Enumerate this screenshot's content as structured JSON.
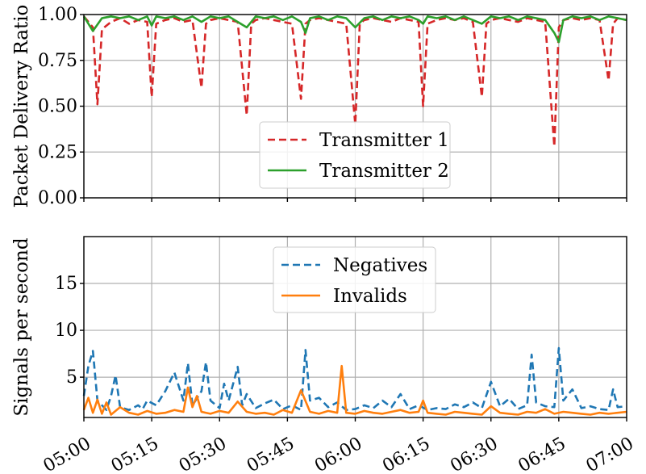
{
  "chart_data": [
    {
      "type": "line",
      "ylabel": "Packet Delivery Ratio",
      "xlabel": "",
      "ylim": [
        0.0,
        1.0
      ],
      "yticks": [
        "0.00",
        "0.25",
        "0.50",
        "0.75",
        "1.00"
      ],
      "xlim": [
        "05:00",
        "07:00"
      ],
      "xticks": [
        "05:00",
        "05:15",
        "05:30",
        "05:45",
        "06:00",
        "06:15",
        "06:30",
        "06:45",
        "07:00"
      ],
      "x_tick_labels_shown": false,
      "grid": true,
      "legend_position": "lower-center",
      "series": [
        {
          "name": "Transmitter 1",
          "color": "#d62728",
          "dash": "dashed",
          "x": [
            "05:00",
            "05:02",
            "05:03",
            "05:04",
            "05:06",
            "05:08",
            "05:10",
            "05:12",
            "05:14",
            "05:15",
            "05:16",
            "05:18",
            "05:20",
            "05:22",
            "05:24",
            "05:26",
            "05:27",
            "05:28",
            "05:30",
            "05:32",
            "05:34",
            "05:36",
            "05:37",
            "05:38",
            "05:40",
            "05:42",
            "05:44",
            "05:46",
            "05:48",
            "05:49",
            "05:50",
            "05:52",
            "05:54",
            "05:56",
            "05:58",
            "06:00",
            "06:01",
            "06:02",
            "06:04",
            "06:06",
            "06:08",
            "06:10",
            "06:12",
            "06:14",
            "06:15",
            "06:16",
            "06:18",
            "06:20",
            "06:22",
            "06:24",
            "06:26",
            "06:28",
            "06:29",
            "06:30",
            "06:32",
            "06:34",
            "06:36",
            "06:38",
            "06:40",
            "06:42",
            "06:44",
            "06:45",
            "06:46",
            "06:48",
            "06:50",
            "06:52",
            "06:54",
            "06:56",
            "06:57",
            "06:58",
            "07:00"
          ],
          "values": [
            0.99,
            0.93,
            0.51,
            0.92,
            0.96,
            0.98,
            0.95,
            0.97,
            0.96,
            0.55,
            0.95,
            0.97,
            0.98,
            0.96,
            0.97,
            0.6,
            0.95,
            0.97,
            0.98,
            0.97,
            0.96,
            0.45,
            0.95,
            0.97,
            0.98,
            0.97,
            0.96,
            0.95,
            0.54,
            0.95,
            0.97,
            0.98,
            0.97,
            0.96,
            0.95,
            0.4,
            0.95,
            0.97,
            0.98,
            0.97,
            0.96,
            0.98,
            0.97,
            0.96,
            0.5,
            0.95,
            0.97,
            0.98,
            0.97,
            0.98,
            0.96,
            0.55,
            0.95,
            0.97,
            0.98,
            0.97,
            0.96,
            0.98,
            0.97,
            0.96,
            0.28,
            0.93,
            0.97,
            0.98,
            0.97,
            0.98,
            0.97,
            0.64,
            0.95,
            0.98,
            0.97
          ]
        },
        {
          "name": "Transmitter 2",
          "color": "#2ca02c",
          "dash": "solid",
          "x": [
            "05:00",
            "05:02",
            "05:04",
            "05:06",
            "05:08",
            "05:10",
            "05:12",
            "05:14",
            "05:15",
            "05:16",
            "05:18",
            "05:20",
            "05:22",
            "05:24",
            "05:26",
            "05:28",
            "05:30",
            "05:32",
            "05:34",
            "05:36",
            "05:38",
            "05:40",
            "05:42",
            "05:44",
            "05:46",
            "05:48",
            "05:49",
            "05:50",
            "05:52",
            "05:54",
            "05:56",
            "05:58",
            "06:00",
            "06:02",
            "06:04",
            "06:06",
            "06:08",
            "06:10",
            "06:12",
            "06:14",
            "06:15",
            "06:16",
            "06:18",
            "06:20",
            "06:22",
            "06:24",
            "06:26",
            "06:28",
            "06:30",
            "06:32",
            "06:34",
            "06:36",
            "06:38",
            "06:40",
            "06:42",
            "06:44",
            "06:45",
            "06:46",
            "06:48",
            "06:50",
            "06:52",
            "06:54",
            "06:56",
            "06:58",
            "07:00"
          ],
          "values": [
            0.99,
            0.91,
            0.98,
            0.99,
            0.98,
            0.99,
            0.97,
            0.99,
            0.94,
            0.99,
            0.98,
            0.99,
            0.97,
            0.99,
            0.96,
            0.99,
            0.98,
            0.99,
            0.96,
            0.93,
            0.99,
            0.98,
            0.99,
            0.97,
            0.99,
            0.96,
            0.9,
            0.98,
            0.99,
            0.97,
            0.99,
            0.98,
            0.93,
            0.98,
            0.99,
            0.97,
            0.99,
            0.98,
            0.99,
            0.97,
            0.95,
            0.99,
            0.98,
            0.99,
            0.97,
            0.99,
            0.97,
            0.95,
            0.99,
            0.98,
            0.99,
            0.97,
            0.99,
            0.98,
            0.97,
            0.9,
            0.85,
            0.97,
            0.99,
            0.98,
            0.99,
            0.97,
            0.99,
            0.98,
            0.97
          ]
        }
      ]
    },
    {
      "type": "line",
      "ylabel": "Signals per second",
      "xlabel": "",
      "ylim": [
        0.7,
        20.0
      ],
      "yticks": [
        "5",
        "10",
        "15"
      ],
      "xlim": [
        "05:00",
        "07:00"
      ],
      "xticks": [
        "05:00",
        "05:15",
        "05:30",
        "05:45",
        "06:00",
        "06:15",
        "06:30",
        "06:45",
        "07:00"
      ],
      "grid": true,
      "legend_position": "top-center",
      "series": [
        {
          "name": "Negatives",
          "color": "#1f77b4",
          "dash": "dashed",
          "x": [
            "05:00",
            "05:01",
            "05:02",
            "05:03",
            "05:04",
            "05:05",
            "05:06",
            "05:07",
            "05:08",
            "05:10",
            "05:12",
            "05:13",
            "05:14",
            "05:16",
            "05:18",
            "05:20",
            "05:22",
            "05:23",
            "05:24",
            "05:26",
            "05:27",
            "05:28",
            "05:30",
            "05:31",
            "05:32",
            "05:34",
            "05:35",
            "05:36",
            "05:38",
            "05:40",
            "05:42",
            "05:44",
            "05:46",
            "05:48",
            "05:49",
            "05:50",
            "05:52",
            "05:54",
            "05:56",
            "05:58",
            "06:00",
            "06:02",
            "06:04",
            "06:06",
            "06:08",
            "06:10",
            "06:12",
            "06:14",
            "06:16",
            "06:18",
            "06:20",
            "06:22",
            "06:24",
            "06:26",
            "06:28",
            "06:30",
            "06:32",
            "06:34",
            "06:36",
            "06:38",
            "06:39",
            "06:40",
            "06:42",
            "06:44",
            "06:45",
            "06:46",
            "06:48",
            "06:50",
            "06:52",
            "06:54",
            "06:56",
            "06:57",
            "06:58",
            "07:00"
          ],
          "values": [
            3.0,
            6.2,
            7.8,
            2.5,
            2.0,
            1.5,
            3.0,
            5.2,
            1.8,
            1.5,
            2.0,
            1.6,
            2.5,
            2.0,
            3.5,
            5.5,
            2.5,
            6.5,
            2.0,
            3.5,
            6.6,
            2.5,
            1.7,
            4.3,
            2.5,
            6.1,
            2.0,
            3.2,
            1.7,
            2.2,
            2.6,
            1.6,
            2.0,
            1.5,
            7.9,
            2.5,
            2.8,
            1.8,
            2.3,
            1.5,
            1.6,
            2.0,
            1.7,
            2.5,
            1.8,
            3.2,
            1.6,
            2.0,
            1.5,
            1.7,
            1.6,
            2.1,
            1.8,
            2.3,
            1.7,
            4.5,
            1.9,
            2.7,
            1.6,
            2.0,
            7.4,
            2.3,
            1.9,
            1.8,
            8.1,
            2.5,
            3.7,
            1.7,
            1.9,
            1.6,
            1.5,
            3.7,
            1.8,
            1.9
          ]
        },
        {
          "name": "Invalids",
          "color": "#ff7f0e",
          "dash": "solid",
          "x": [
            "05:00",
            "05:01",
            "05:02",
            "05:03",
            "05:04",
            "05:05",
            "05:06",
            "05:08",
            "05:10",
            "05:12",
            "05:14",
            "05:16",
            "05:18",
            "05:20",
            "05:22",
            "05:23",
            "05:24",
            "05:25",
            "05:26",
            "05:28",
            "05:30",
            "05:32",
            "05:34",
            "05:36",
            "05:38",
            "05:40",
            "05:42",
            "05:44",
            "05:46",
            "05:48",
            "05:50",
            "05:52",
            "05:54",
            "05:56",
            "05:57",
            "05:58",
            "06:00",
            "06:02",
            "06:04",
            "06:06",
            "06:08",
            "06:10",
            "06:12",
            "06:14",
            "06:15",
            "06:16",
            "06:18",
            "06:20",
            "06:22",
            "06:24",
            "06:26",
            "06:28",
            "06:30",
            "06:32",
            "06:34",
            "06:36",
            "06:38",
            "06:40",
            "06:42",
            "06:44",
            "06:46",
            "06:48",
            "06:50",
            "06:52",
            "06:54",
            "06:56",
            "06:58",
            "07:00"
          ],
          "values": [
            1.5,
            2.8,
            1.2,
            2.6,
            1.1,
            2.3,
            1.0,
            1.8,
            1.2,
            1.0,
            1.4,
            1.1,
            1.2,
            1.5,
            1.3,
            3.9,
            1.8,
            3.0,
            1.3,
            1.1,
            1.4,
            1.2,
            2.4,
            1.3,
            1.1,
            1.2,
            1.0,
            1.5,
            1.2,
            3.6,
            1.3,
            1.1,
            1.4,
            1.2,
            6.2,
            1.2,
            1.1,
            1.4,
            1.2,
            1.1,
            1.3,
            1.5,
            1.2,
            1.3,
            2.5,
            1.2,
            1.1,
            1.0,
            1.3,
            1.2,
            1.1,
            1.0,
            1.9,
            1.2,
            1.1,
            1.0,
            1.3,
            1.2,
            1.6,
            1.1,
            1.3,
            1.2,
            1.1,
            1.0,
            1.2,
            1.1,
            1.2,
            1.3
          ]
        }
      ]
    }
  ]
}
